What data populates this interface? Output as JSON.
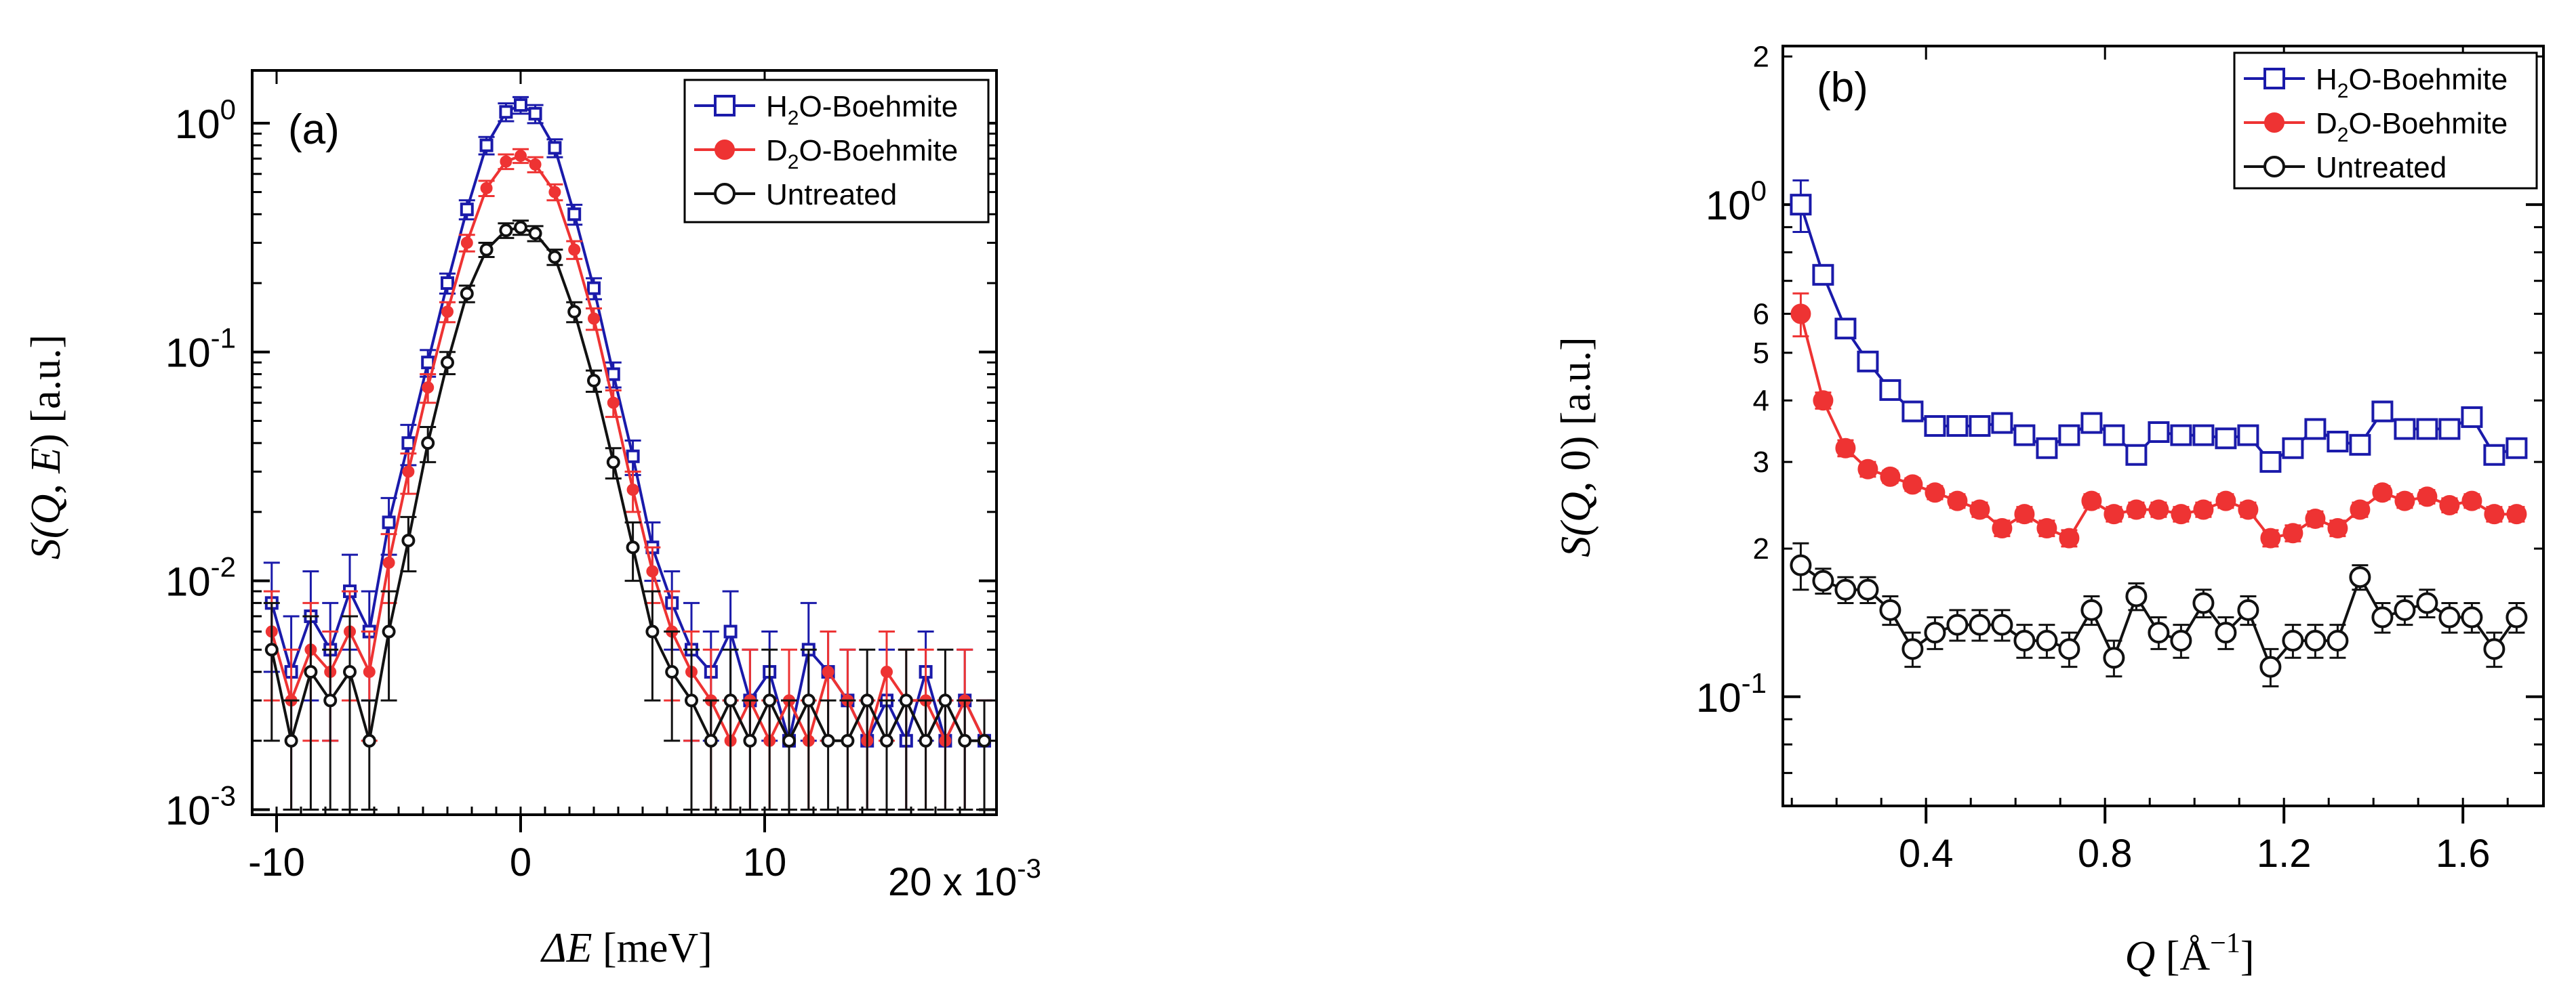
{
  "chart_data": [
    {
      "panel": "(a)",
      "type": "line",
      "xlabel_var": "ΔE",
      "xlabel_unit": " [meV]",
      "ylabel_left": "S(",
      "ylabel_var1": "Q",
      "ylabel_mid": ", ",
      "ylabel_var2": "E",
      "ylabel_right": ") [a.u.]",
      "y_scale": "log",
      "xlim": [
        -0.011,
        0.0195
      ],
      "ylim": [
        0.00095,
        1.7
      ],
      "x_ticks": [
        -0.01,
        0,
        0.01
      ],
      "x_tick_labels": [
        "-10",
        "0",
        "10"
      ],
      "x_multiplier_label": "20 x 10",
      "x_multiplier_exp": "-3",
      "y_ticks": [
        0.001,
        0.01,
        0.1,
        1
      ],
      "y_tick_mantissa": [
        "10",
        "10",
        "10",
        "10"
      ],
      "y_tick_exps": [
        "-3",
        "-2",
        "-1",
        "0"
      ],
      "legend_position": "top-right",
      "series": [
        {
          "name_pre": "H",
          "name_sub": "2",
          "name_post": "O-Boehmite",
          "color": "#1a1aaa",
          "marker": "open-square",
          "x": [
            -0.0102,
            -0.0094,
            -0.0086,
            -0.0078,
            -0.007,
            -0.0062,
            -0.0054,
            -0.0046,
            -0.0038,
            -0.003,
            -0.0022,
            -0.0014,
            -0.0006,
            0,
            0.0006,
            0.0014,
            0.0022,
            0.003,
            0.0038,
            0.0046,
            0.0054,
            0.0062,
            0.007,
            0.0078,
            0.0086,
            0.0094,
            0.0102,
            0.011,
            0.0118,
            0.0126,
            0.0134,
            0.0142,
            0.015,
            0.0158,
            0.0166,
            0.0174,
            0.0182,
            0.019
          ],
          "y": [
            0.008,
            0.004,
            0.007,
            0.005,
            0.009,
            0.006,
            0.018,
            0.04,
            0.09,
            0.2,
            0.42,
            0.8,
            1.12,
            1.2,
            1.1,
            0.78,
            0.4,
            0.19,
            0.08,
            0.035,
            0.014,
            0.008,
            0.005,
            0.004,
            0.006,
            0.003,
            0.004,
            0.002,
            0.005,
            0.004,
            0.003,
            0.002,
            0.003,
            0.002,
            0.004,
            0.002,
            0.003,
            0.002
          ],
          "err": [
            0.004,
            0.003,
            0.004,
            0.003,
            0.004,
            0.003,
            0.005,
            0.008,
            0.012,
            0.02,
            0.04,
            0.07,
            0.1,
            0.1,
            0.1,
            0.07,
            0.04,
            0.02,
            0.01,
            0.006,
            0.004,
            0.003,
            0.003,
            0.002,
            0.003,
            0.002,
            0.002,
            0.001,
            0.003,
            0.002,
            0.002,
            0.001,
            0.002,
            0.001,
            0.002,
            0.001,
            0.002,
            0.001
          ]
        },
        {
          "name_pre": "D",
          "name_sub": "2",
          "name_post": "O-Boehmite",
          "color": "#ee3333",
          "marker": "filled-circle",
          "x": [
            -0.0102,
            -0.0094,
            -0.0086,
            -0.0078,
            -0.007,
            -0.0062,
            -0.0054,
            -0.0046,
            -0.0038,
            -0.003,
            -0.0022,
            -0.0014,
            -0.0006,
            0,
            0.0006,
            0.0014,
            0.0022,
            0.003,
            0.0038,
            0.0046,
            0.0054,
            0.0062,
            0.007,
            0.0078,
            0.0086,
            0.0094,
            0.0102,
            0.011,
            0.0118,
            0.0126,
            0.0134,
            0.0142,
            0.015,
            0.0158,
            0.0166,
            0.0174,
            0.0182,
            0.019
          ],
          "y": [
            0.006,
            0.003,
            0.005,
            0.004,
            0.006,
            0.004,
            0.012,
            0.03,
            0.07,
            0.15,
            0.3,
            0.52,
            0.68,
            0.72,
            0.66,
            0.5,
            0.28,
            0.14,
            0.06,
            0.025,
            0.011,
            0.006,
            0.004,
            0.003,
            0.002,
            0.003,
            0.002,
            0.003,
            0.002,
            0.004,
            0.003,
            0.002,
            0.004,
            0.003,
            0.003,
            0.002,
            0.003,
            0.002
          ],
          "err": [
            0.003,
            0.002,
            0.003,
            0.002,
            0.003,
            0.002,
            0.004,
            0.006,
            0.01,
            0.015,
            0.025,
            0.04,
            0.05,
            0.05,
            0.05,
            0.04,
            0.025,
            0.015,
            0.008,
            0.005,
            0.003,
            0.003,
            0.002,
            0.002,
            0.001,
            0.002,
            0.001,
            0.002,
            0.001,
            0.002,
            0.002,
            0.001,
            0.002,
            0.002,
            0.002,
            0.001,
            0.002,
            0.001
          ]
        },
        {
          "name_pre": "Untreated",
          "name_sub": "",
          "name_post": "",
          "color": "#111111",
          "marker": "open-circle",
          "x": [
            -0.0102,
            -0.0094,
            -0.0086,
            -0.0078,
            -0.007,
            -0.0062,
            -0.0054,
            -0.0046,
            -0.0038,
            -0.003,
            -0.0022,
            -0.0014,
            -0.0006,
            0,
            0.0006,
            0.0014,
            0.0022,
            0.003,
            0.0038,
            0.0046,
            0.0054,
            0.0062,
            0.007,
            0.0078,
            0.0086,
            0.0094,
            0.0102,
            0.011,
            0.0118,
            0.0126,
            0.0134,
            0.0142,
            0.015,
            0.0158,
            0.0166,
            0.0174,
            0.0182,
            0.019
          ],
          "y": [
            0.005,
            0.002,
            0.004,
            0.003,
            0.004,
            0.002,
            0.006,
            0.015,
            0.04,
            0.09,
            0.18,
            0.28,
            0.34,
            0.35,
            0.33,
            0.26,
            0.15,
            0.075,
            0.033,
            0.014,
            0.006,
            0.004,
            0.003,
            0.002,
            0.003,
            0.002,
            0.003,
            0.002,
            0.003,
            0.002,
            0.002,
            0.003,
            0.002,
            0.003,
            0.002,
            0.003,
            0.002,
            0.002
          ],
          "err": [
            0.003,
            0.001,
            0.003,
            0.002,
            0.003,
            0.001,
            0.003,
            0.004,
            0.007,
            0.01,
            0.015,
            0.02,
            0.025,
            0.025,
            0.025,
            0.02,
            0.015,
            0.008,
            0.005,
            0.004,
            0.003,
            0.002,
            0.002,
            0.001,
            0.002,
            0.001,
            0.002,
            0.001,
            0.002,
            0.001,
            0.001,
            0.002,
            0.001,
            0.002,
            0.001,
            0.002,
            0.001,
            0.001
          ]
        }
      ]
    },
    {
      "panel": "(b)",
      "type": "line",
      "xlabel_var": "Q",
      "xlabel_unit_pre": " [Å",
      "xlabel_unit_exp": "−1",
      "xlabel_unit_post": "]",
      "ylabel_left": "S(",
      "ylabel_var1": "Q",
      "ylabel_mid": ", ",
      "ylabel_var2": "0",
      "ylabel_right": ") [a.u.]",
      "y_scale": "log",
      "xlim": [
        0.08,
        1.78
      ],
      "ylim": [
        0.06,
        2.1
      ],
      "x_ticks": [
        0.4,
        0.8,
        1.2,
        1.6
      ],
      "x_tick_labels": [
        "0.4",
        "0.8",
        "1.2",
        "1.6"
      ],
      "y_major_ticks": [
        0.1,
        1
      ],
      "y_major_mantissa": [
        "10",
        "10"
      ],
      "y_major_exps": [
        "-1",
        "0"
      ],
      "y_minor_labeled": [
        0.2,
        0.3,
        0.4,
        0.5,
        0.6,
        2
      ],
      "y_minor_labels": [
        "2",
        "3",
        "4",
        "5",
        "6",
        "2"
      ],
      "legend_position": "top-right",
      "series": [
        {
          "name_pre": "H",
          "name_sub": "2",
          "name_post": "O-Boehmite",
          "color": "#1a1aaa",
          "marker": "open-square",
          "x": [
            0.12,
            0.17,
            0.22,
            0.27,
            0.32,
            0.37,
            0.42,
            0.47,
            0.52,
            0.57,
            0.62,
            0.67,
            0.72,
            0.77,
            0.82,
            0.87,
            0.92,
            0.97,
            1.02,
            1.07,
            1.12,
            1.17,
            1.22,
            1.27,
            1.32,
            1.37,
            1.42,
            1.47,
            1.52,
            1.57,
            1.62,
            1.67,
            1.72
          ],
          "y": [
            1.0,
            0.72,
            0.56,
            0.48,
            0.42,
            0.38,
            0.355,
            0.355,
            0.355,
            0.36,
            0.34,
            0.32,
            0.34,
            0.36,
            0.34,
            0.31,
            0.345,
            0.34,
            0.34,
            0.335,
            0.34,
            0.3,
            0.32,
            0.35,
            0.33,
            0.325,
            0.38,
            0.35,
            0.35,
            0.35,
            0.37,
            0.31,
            0.32
          ],
          "err": [
            0.12,
            0.02,
            0.015,
            0.01,
            0.008,
            0.008,
            0.008,
            0.008,
            0.008,
            0.008,
            0.008,
            0.008,
            0.008,
            0.008,
            0.008,
            0.008,
            0.008,
            0.008,
            0.008,
            0.008,
            0.008,
            0.008,
            0.008,
            0.008,
            0.008,
            0.008,
            0.008,
            0.008,
            0.008,
            0.008,
            0.008,
            0.008,
            0.008
          ]
        },
        {
          "name_pre": "D",
          "name_sub": "2",
          "name_post": "O-Boehmite",
          "color": "#ee3333",
          "marker": "filled-circle",
          "x": [
            0.12,
            0.17,
            0.22,
            0.27,
            0.32,
            0.37,
            0.42,
            0.47,
            0.52,
            0.57,
            0.62,
            0.67,
            0.72,
            0.77,
            0.82,
            0.87,
            0.92,
            0.97,
            1.02,
            1.07,
            1.12,
            1.17,
            1.22,
            1.27,
            1.32,
            1.37,
            1.42,
            1.47,
            1.52,
            1.57,
            1.62,
            1.67,
            1.72
          ],
          "y": [
            0.6,
            0.4,
            0.32,
            0.29,
            0.28,
            0.27,
            0.26,
            0.25,
            0.24,
            0.22,
            0.235,
            0.22,
            0.21,
            0.25,
            0.235,
            0.24,
            0.24,
            0.235,
            0.24,
            0.25,
            0.24,
            0.21,
            0.215,
            0.23,
            0.22,
            0.24,
            0.26,
            0.25,
            0.255,
            0.245,
            0.25,
            0.235,
            0.235
          ],
          "err": [
            0.06,
            0.015,
            0.012,
            0.01,
            0.008,
            0.008,
            0.008,
            0.008,
            0.008,
            0.008,
            0.008,
            0.008,
            0.008,
            0.008,
            0.008,
            0.008,
            0.008,
            0.008,
            0.008,
            0.008,
            0.008,
            0.008,
            0.008,
            0.008,
            0.008,
            0.008,
            0.008,
            0.008,
            0.008,
            0.008,
            0.008,
            0.008,
            0.008
          ]
        },
        {
          "name_pre": "Untreated",
          "name_sub": "",
          "name_post": "",
          "color": "#111111",
          "marker": "open-circle",
          "x": [
            0.12,
            0.17,
            0.22,
            0.27,
            0.32,
            0.37,
            0.42,
            0.47,
            0.52,
            0.57,
            0.62,
            0.67,
            0.72,
            0.77,
            0.82,
            0.87,
            0.92,
            0.97,
            1.02,
            1.07,
            1.12,
            1.17,
            1.22,
            1.27,
            1.32,
            1.37,
            1.42,
            1.47,
            1.52,
            1.57,
            1.62,
            1.67,
            1.72
          ],
          "y": [
            0.185,
            0.172,
            0.165,
            0.165,
            0.15,
            0.125,
            0.135,
            0.14,
            0.14,
            0.14,
            0.13,
            0.13,
            0.125,
            0.15,
            0.12,
            0.16,
            0.135,
            0.13,
            0.155,
            0.135,
            0.15,
            0.115,
            0.13,
            0.13,
            0.13,
            0.175,
            0.145,
            0.15,
            0.155,
            0.145,
            0.145,
            0.125,
            0.145
          ],
          "err": [
            0.02,
            0.01,
            0.01,
            0.01,
            0.01,
            0.01,
            0.01,
            0.01,
            0.01,
            0.01,
            0.01,
            0.01,
            0.01,
            0.01,
            0.01,
            0.01,
            0.01,
            0.01,
            0.01,
            0.01,
            0.01,
            0.01,
            0.01,
            0.01,
            0.01,
            0.01,
            0.01,
            0.01,
            0.01,
            0.01,
            0.01,
            0.01,
            0.01
          ]
        }
      ]
    }
  ]
}
